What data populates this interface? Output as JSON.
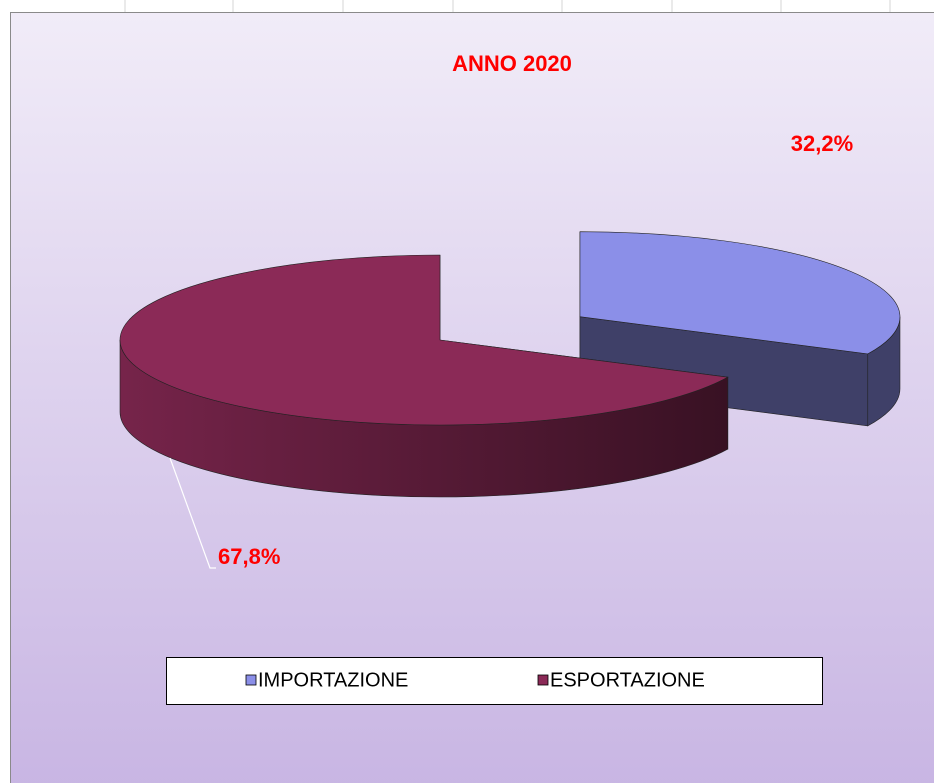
{
  "chart_data": {
    "type": "pie",
    "title": "ANNO 2020",
    "categories": [
      "IMPORTAZIONE",
      "ESPORTAZIONE"
    ],
    "values": [
      32.2,
      67.8
    ],
    "value_labels": [
      "32,2%",
      "67,8%"
    ],
    "colors": [
      "#8b8fe8",
      "#8b2a57"
    ]
  }
}
